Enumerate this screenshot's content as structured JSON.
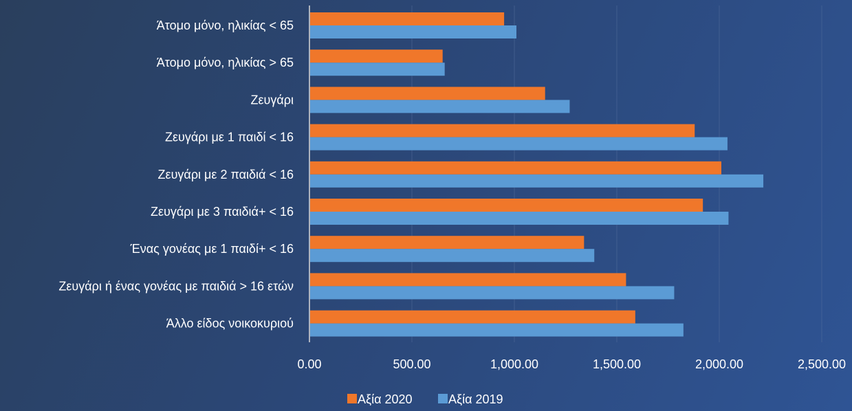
{
  "chart_data": {
    "type": "bar",
    "orientation": "horizontal",
    "categories": [
      "Άτομο μόνο, ηλικίας < 65",
      "Άτομο μόνο, ηλικίας > 65",
      "Ζευγάρι",
      "Ζευγάρι με 1 παιδί < 16",
      "Ζευγάρι με 2 παιδιά < 16",
      "Ζευγάρι με 3 παιδιά+ < 16",
      "Ένας γονέας με 1 παιδί+ < 16",
      "Ζευγάρι ή ένας γονέας με παιδιά > 16 ετών",
      "Άλλο είδος νοικοκυριού"
    ],
    "series": [
      {
        "name": "Αξία 2020",
        "color": "#f0772a",
        "values": [
          950,
          650,
          1150,
          1880,
          2010,
          1920,
          1340,
          1545,
          1590
        ]
      },
      {
        "name": "Αξία 2019",
        "color": "#5b9bd5",
        "values": [
          1010,
          660,
          1270,
          2040,
          2215,
          2045,
          1390,
          1780,
          1825
        ]
      }
    ],
    "xlim": [
      0,
      2500
    ],
    "xticks": [
      "0.00",
      "500.00",
      "1,000.00",
      "1,500.00",
      "2,000.00",
      "2,500.00"
    ],
    "tick_values": [
      0,
      500,
      1000,
      1500,
      2000,
      2500
    ],
    "legend_position": "bottom",
    "grid": true
  }
}
